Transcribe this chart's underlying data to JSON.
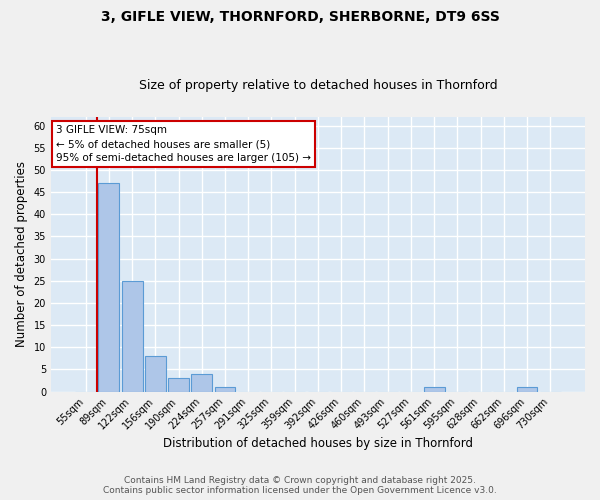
{
  "title1": "3, GIFLE VIEW, THORNFORD, SHERBORNE, DT9 6SS",
  "title2": "Size of property relative to detached houses in Thornford",
  "xlabel": "Distribution of detached houses by size in Thornford",
  "ylabel": "Number of detached properties",
  "categories": [
    "55sqm",
    "89sqm",
    "122sqm",
    "156sqm",
    "190sqm",
    "224sqm",
    "257sqm",
    "291sqm",
    "325sqm",
    "359sqm",
    "392sqm",
    "426sqm",
    "460sqm",
    "493sqm",
    "527sqm",
    "561sqm",
    "595sqm",
    "628sqm",
    "662sqm",
    "696sqm",
    "730sqm"
  ],
  "values": [
    0,
    47,
    25,
    8,
    3,
    4,
    1,
    0,
    0,
    0,
    0,
    0,
    0,
    0,
    0,
    1,
    0,
    0,
    0,
    1,
    0
  ],
  "bar_color": "#aec6e8",
  "bar_edgecolor": "#5b9bd5",
  "vline_color": "#cc0000",
  "vline_x_index": 0.5,
  "ylim": [
    0,
    62
  ],
  "yticks": [
    0,
    5,
    10,
    15,
    20,
    25,
    30,
    35,
    40,
    45,
    50,
    55,
    60
  ],
  "annotation_text": "3 GIFLE VIEW: 75sqm\n← 5% of detached houses are smaller (5)\n95% of semi-detached houses are larger (105) →",
  "annotation_box_facecolor": "#ffffff",
  "annotation_box_edgecolor": "#cc0000",
  "footer1": "Contains HM Land Registry data © Crown copyright and database right 2025.",
  "footer2": "Contains public sector information licensed under the Open Government Licence v3.0.",
  "bg_color": "#dce9f5",
  "fig_facecolor": "#f0f0f0",
  "grid_color": "#ffffff",
  "title1_fontsize": 10,
  "title2_fontsize": 9,
  "tick_fontsize": 7,
  "label_fontsize": 8.5,
  "footer_fontsize": 6.5,
  "annotation_fontsize": 7.5
}
